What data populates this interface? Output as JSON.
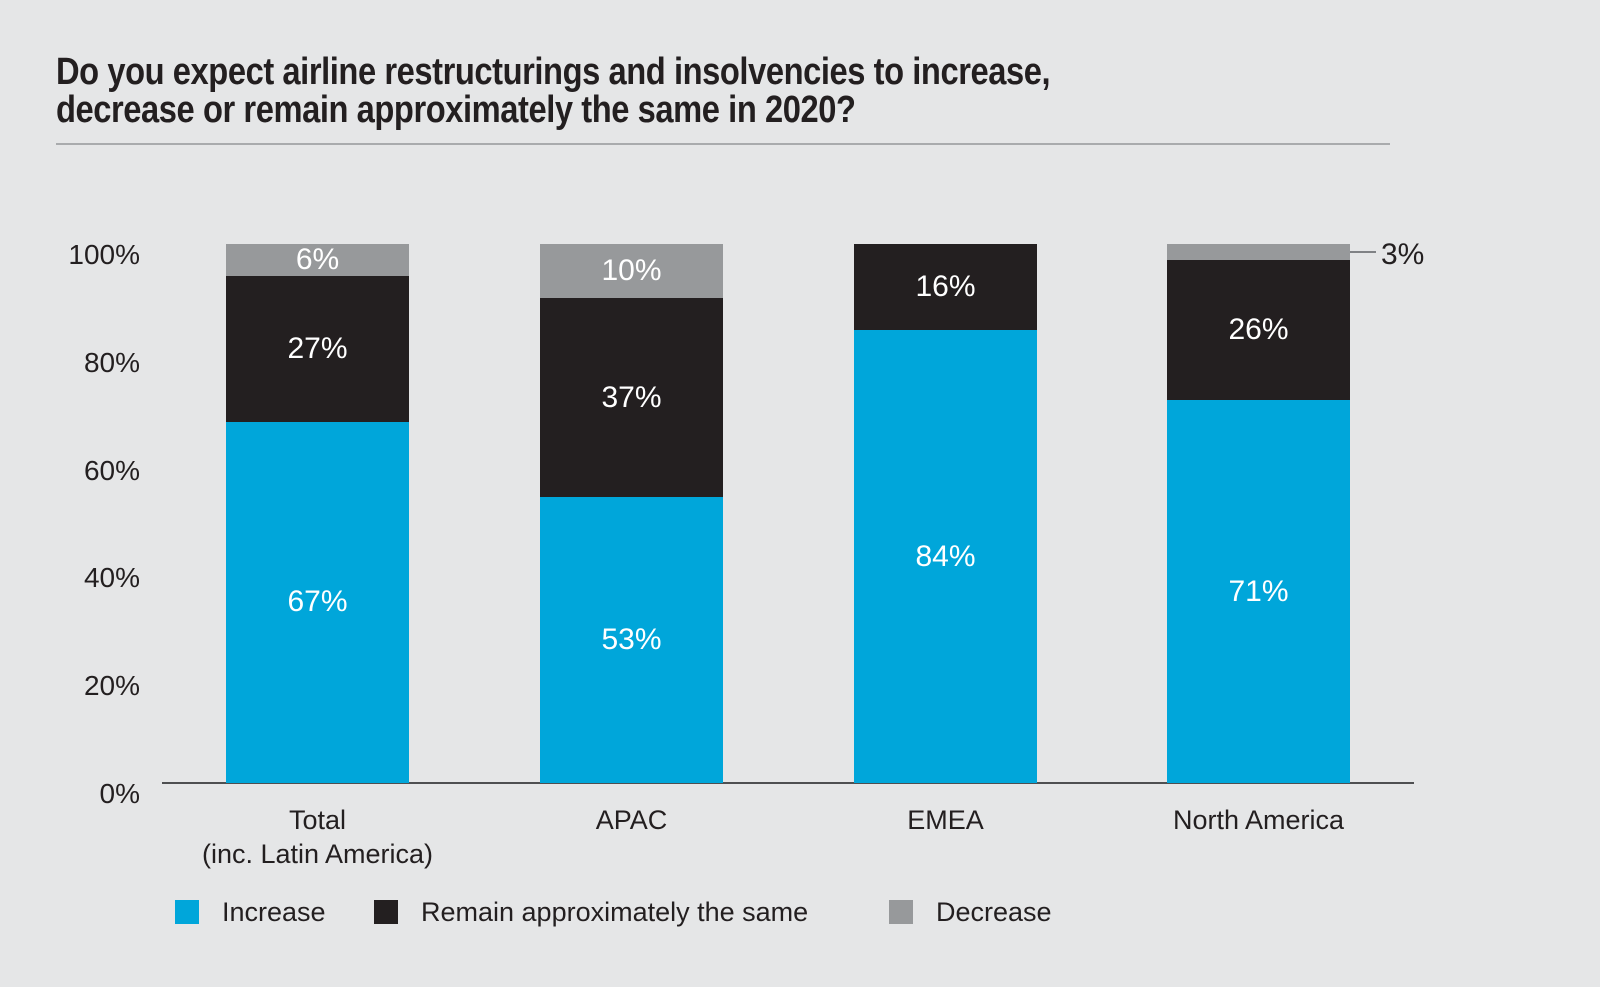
{
  "header": {
    "title_line1": "Do you expect airline restructurings and insolvencies to increase,",
    "title_line2": "decrease or remain approximately the same in 2020?"
  },
  "chart_data": {
    "type": "bar",
    "subtype": "stacked-percentage-column",
    "title": "Do you expect airline restructurings and insolvencies to increase, decrease or remain approximately the same in 2020?",
    "categories": [
      "Total\n(inc. Latin America)",
      "APAC",
      "EMEA",
      "North America"
    ],
    "series": [
      {
        "name": "Increase",
        "color": "#00A6DA",
        "values": [
          67,
          53,
          84,
          71
        ]
      },
      {
        "name": "Remain approximately the same",
        "color": "#231F20",
        "values": [
          27,
          37,
          16,
          26
        ]
      },
      {
        "name": "Decrease",
        "color": "#97999B",
        "values": [
          6,
          10,
          0,
          3
        ]
      }
    ],
    "label_format": "{value}%",
    "y_ticks": [
      0,
      20,
      40,
      60,
      80,
      100
    ],
    "y_tick_labels": [
      "0%",
      "20%",
      "40%",
      "60%",
      "80%",
      "100%"
    ],
    "ylim": [
      0,
      100
    ],
    "grid": false,
    "legend_position": "bottom",
    "outside_label": {
      "category": "North America",
      "series": "Decrease",
      "text": "3%"
    }
  },
  "colors": {
    "background": "#E5E6E7",
    "text": "#231F20",
    "axis_line": "#4E4F51",
    "title_rule": "#A9ABAD",
    "connector": "#808285",
    "bar_label_text": "#FFFFFF"
  }
}
